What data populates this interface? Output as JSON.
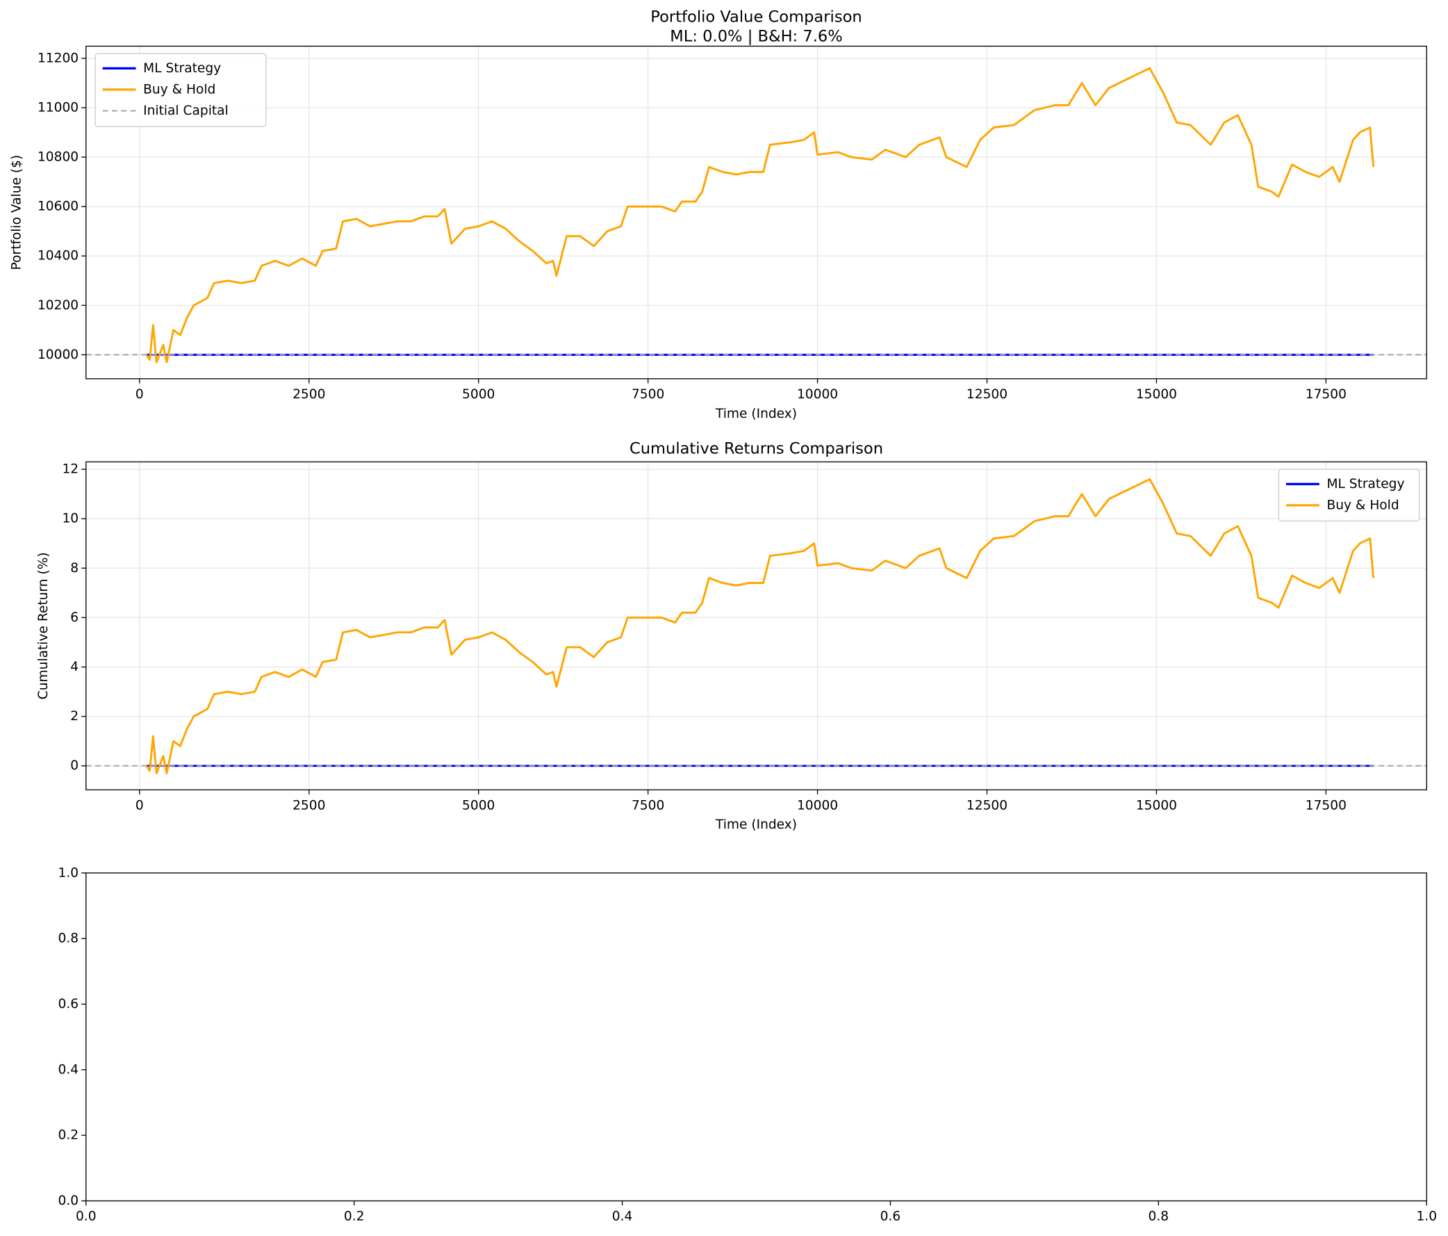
{
  "chart_data": [
    {
      "type": "line",
      "title": "Portfolio Value Comparison",
      "subtitle": "ML: 0.0% | B&H: 7.6%",
      "x_label": "Time (Index)",
      "y_label": "Portfolio Value ($)",
      "xlim": [
        -790,
        18985
      ],
      "ylim": [
        9903,
        11249
      ],
      "xticks": [
        0,
        2500,
        5000,
        7500,
        10000,
        12500,
        15000,
        17500
      ],
      "yticks": [
        10000,
        10200,
        10400,
        10600,
        10800,
        11000,
        11200
      ],
      "grid": true,
      "legend": "upper left",
      "series": [
        {
          "name": "ML Strategy",
          "color": "#0000ff",
          "x": [
            100,
            18200
          ],
          "values": [
            10000,
            10000
          ]
        },
        {
          "name": "Buy & Hold",
          "color": "#ffa500",
          "x": [
            100,
            150,
            200,
            250,
            350,
            400,
            500,
            600,
            700,
            800,
            1000,
            1100,
            1300,
            1500,
            1700,
            1800,
            2000,
            2200,
            2400,
            2600,
            2700,
            2900,
            3000,
            3200,
            3400,
            3600,
            3800,
            4000,
            4200,
            4400,
            4500,
            4600,
            4800,
            5000,
            5200,
            5400,
            5600,
            5800,
            6000,
            6100,
            6150,
            6300,
            6500,
            6700,
            6900,
            7100,
            7200,
            7500,
            7700,
            7900,
            8000,
            8200,
            8300,
            8400,
            8600,
            8800,
            9000,
            9200,
            9300,
            9600,
            9800,
            9950,
            10000,
            10300,
            10500,
            10800,
            11000,
            11300,
            11500,
            11800,
            11900,
            12200,
            12400,
            12600,
            12900,
            13200,
            13500,
            13700,
            13900,
            14100,
            14300,
            14600,
            14900,
            15100,
            15300,
            15500,
            15800,
            16000,
            16200,
            16400,
            16500,
            16700,
            16800,
            17000,
            17200,
            17400,
            17600,
            17700,
            17900,
            18000,
            18150,
            18200
          ],
          "values": [
            10000,
            9980,
            10120,
            9970,
            10040,
            9970,
            10100,
            10080,
            10150,
            10200,
            10230,
            10290,
            10300,
            10290,
            10300,
            10360,
            10380,
            10360,
            10390,
            10360,
            10420,
            10430,
            10540,
            10550,
            10520,
            10530,
            10540,
            10540,
            10560,
            10560,
            10590,
            10450,
            10510,
            10520,
            10540,
            10510,
            10460,
            10420,
            10370,
            10380,
            10320,
            10480,
            10480,
            10440,
            10500,
            10520,
            10600,
            10600,
            10600,
            10580,
            10620,
            10620,
            10660,
            10760,
            10740,
            10730,
            10740,
            10740,
            10850,
            10860,
            10870,
            10900,
            10810,
            10820,
            10800,
            10790,
            10830,
            10800,
            10850,
            10880,
            10800,
            10760,
            10870,
            10920,
            10930,
            10990,
            11010,
            11010,
            11100,
            11010,
            11080,
            11120,
            11160,
            11060,
            10940,
            10930,
            10850,
            10940,
            10970,
            10850,
            10680,
            10660,
            10640,
            10770,
            10740,
            10720,
            10760,
            10700,
            10870,
            10900,
            10920,
            10760
          ]
        }
      ],
      "reference_line": {
        "name": "Initial Capital",
        "value": 10000,
        "color": "#aaaaaa"
      }
    },
    {
      "type": "line",
      "title": "Cumulative Returns Comparison",
      "x_label": "Time (Index)",
      "y_label": "Cumulative Return (%)",
      "xlim": [
        -790,
        18985
      ],
      "ylim": [
        -0.97,
        12.3
      ],
      "xticks": [
        0,
        2500,
        5000,
        7500,
        10000,
        12500,
        15000,
        17500
      ],
      "yticks": [
        0,
        2,
        4,
        6,
        8,
        10,
        12
      ],
      "grid": true,
      "legend": "upper right",
      "series": [
        {
          "name": "ML Strategy",
          "color": "#0000ff",
          "x": [
            100,
            18200
          ],
          "values": [
            0,
            0
          ]
        },
        {
          "name": "Buy & Hold",
          "color": "#ffa500",
          "x": [
            100,
            150,
            200,
            250,
            350,
            400,
            500,
            600,
            700,
            800,
            1000,
            1100,
            1300,
            1500,
            1700,
            1800,
            2000,
            2200,
            2400,
            2600,
            2700,
            2900,
            3000,
            3200,
            3400,
            3600,
            3800,
            4000,
            4200,
            4400,
            4500,
            4600,
            4800,
            5000,
            5200,
            5400,
            5600,
            5800,
            6000,
            6100,
            6150,
            6300,
            6500,
            6700,
            6900,
            7100,
            7200,
            7500,
            7700,
            7900,
            8000,
            8200,
            8300,
            8400,
            8600,
            8800,
            9000,
            9200,
            9300,
            9600,
            9800,
            9950,
            10000,
            10300,
            10500,
            10800,
            11000,
            11300,
            11500,
            11800,
            11900,
            12200,
            12400,
            12600,
            12900,
            13200,
            13500,
            13700,
            13900,
            14100,
            14300,
            14600,
            14900,
            15100,
            15300,
            15500,
            15800,
            16000,
            16200,
            16400,
            16500,
            16700,
            16800,
            17000,
            17200,
            17400,
            17600,
            17700,
            17900,
            18000,
            18150,
            18200
          ],
          "values": [
            0,
            -0.2,
            1.2,
            -0.3,
            0.4,
            -0.3,
            1.0,
            0.8,
            1.5,
            2.0,
            2.3,
            2.9,
            3.0,
            2.9,
            3.0,
            3.6,
            3.8,
            3.6,
            3.9,
            3.6,
            4.2,
            4.3,
            5.4,
            5.5,
            5.2,
            5.3,
            5.4,
            5.4,
            5.6,
            5.6,
            5.9,
            4.5,
            5.1,
            5.2,
            5.4,
            5.1,
            4.6,
            4.2,
            3.7,
            3.8,
            3.2,
            4.8,
            4.8,
            4.4,
            5.0,
            5.2,
            6.0,
            6.0,
            6.0,
            5.8,
            6.2,
            6.2,
            6.6,
            7.6,
            7.4,
            7.3,
            7.4,
            7.4,
            8.5,
            8.6,
            8.7,
            9.0,
            8.1,
            8.2,
            8.0,
            7.9,
            8.3,
            8.0,
            8.5,
            8.8,
            8.0,
            7.6,
            8.7,
            9.2,
            9.3,
            9.9,
            10.1,
            10.1,
            11.0,
            10.1,
            10.8,
            11.2,
            11.6,
            10.6,
            9.4,
            9.3,
            8.5,
            9.4,
            9.7,
            8.5,
            6.8,
            6.6,
            6.4,
            7.7,
            7.4,
            7.2,
            7.6,
            7.0,
            8.7,
            9.0,
            9.2,
            7.6
          ]
        }
      ],
      "reference_line": {
        "value": 0,
        "color": "#aaaaaa"
      }
    },
    {
      "type": "line",
      "xlim": [
        0,
        1
      ],
      "ylim": [
        0,
        1
      ],
      "xticks": [
        {
          "value": 0,
          "label": "0.0"
        },
        {
          "value": 0.2,
          "label": "0.2"
        },
        {
          "value": 0.4,
          "label": "0.4"
        },
        {
          "value": 0.6,
          "label": "0.6"
        },
        {
          "value": 0.8,
          "label": "0.8"
        },
        {
          "value": 1,
          "label": "1.0"
        }
      ],
      "yticks": [
        {
          "value": 0,
          "label": "0.0"
        },
        {
          "value": 0.2,
          "label": "0.2"
        },
        {
          "value": 0.4,
          "label": "0.4"
        },
        {
          "value": 0.6,
          "label": "0.6"
        },
        {
          "value": 0.8,
          "label": "0.8"
        },
        {
          "value": 1,
          "label": "1.0"
        }
      ],
      "grid": false,
      "series": []
    }
  ]
}
